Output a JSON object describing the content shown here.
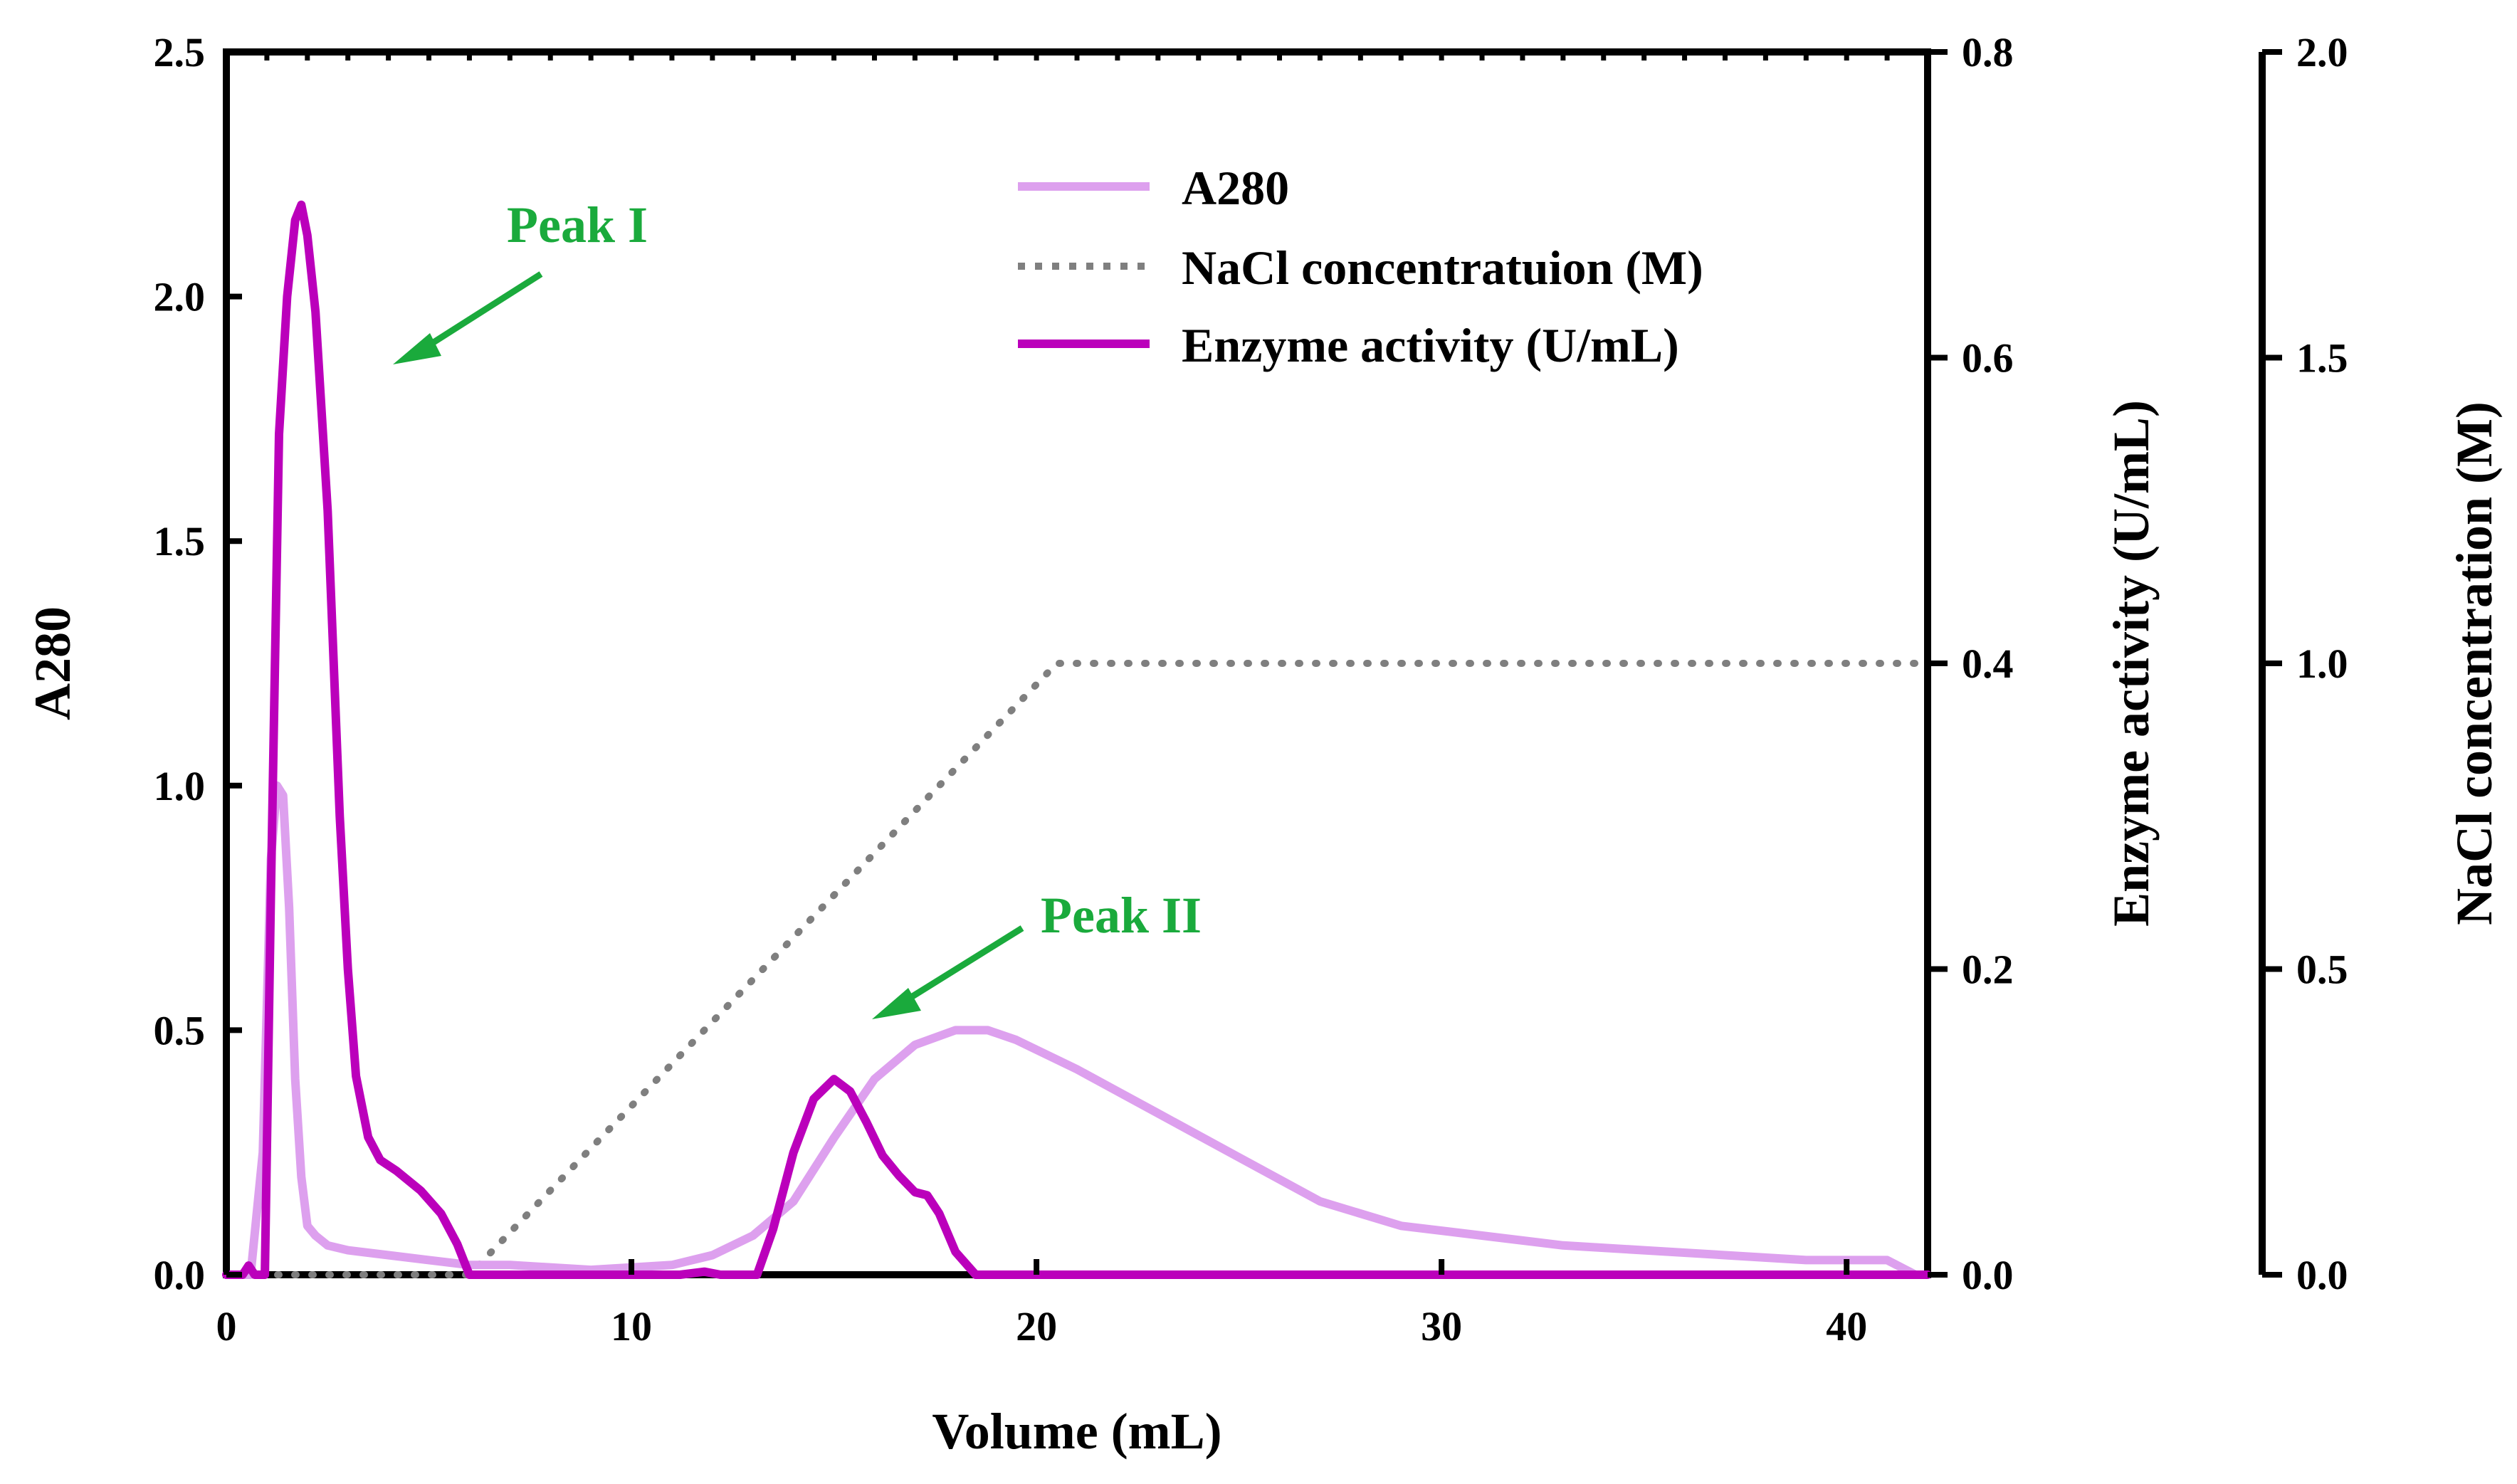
{
  "chart_data": {
    "type": "line",
    "title": "",
    "xlabel": "Volume (mL)",
    "ylabel": "A280",
    "y2label": "Enzyme activity (U/mL)",
    "y3label": "NaCl concentration (M)",
    "xlim": [
      0,
      42
    ],
    "ylim": [
      0,
      2.5
    ],
    "y2lim": [
      0,
      0.8
    ],
    "y3lim": [
      0,
      2.0
    ],
    "x_ticks": [
      "0",
      "10",
      "20",
      "30",
      "40"
    ],
    "y_ticks": [
      "0.0",
      "0.5",
      "1.0",
      "1.5",
      "2.0",
      "2.5"
    ],
    "y2_ticks": [
      "0.0",
      "0.2",
      "0.4",
      "0.6",
      "0.8"
    ],
    "y3_ticks": [
      "0.0",
      "0.5",
      "1.0",
      "1.5",
      "2.0"
    ],
    "legend_position": "top-center",
    "series": [
      {
        "name": "A280",
        "axis": "left",
        "style": "solid",
        "color": "#dda0ee",
        "x": [
          0,
          0.6,
          0.9,
          1.1,
          1.25,
          1.4,
          1.55,
          1.7,
          1.85,
          2.0,
          2.2,
          2.5,
          3.0,
          4.0,
          5.0,
          6.0,
          7.0,
          9.0,
          11.0,
          12.0,
          13.0,
          14.0,
          15.0,
          16.0,
          17.0,
          18.0,
          18.8,
          19.5,
          21.0,
          23.0,
          25.0,
          27.0,
          29.0,
          31.0,
          33.0,
          35.0,
          37.0,
          39.0,
          41.0,
          41.7
        ],
        "values": [
          0.0,
          0.0,
          0.25,
          0.85,
          1.0,
          0.98,
          0.75,
          0.4,
          0.2,
          0.1,
          0.08,
          0.06,
          0.05,
          0.04,
          0.03,
          0.02,
          0.02,
          0.01,
          0.02,
          0.04,
          0.08,
          0.15,
          0.28,
          0.4,
          0.47,
          0.5,
          0.5,
          0.48,
          0.42,
          0.33,
          0.24,
          0.15,
          0.1,
          0.08,
          0.06,
          0.05,
          0.04,
          0.03,
          0.03,
          0.0
        ]
      },
      {
        "name": "NaCl concentratuion (M)",
        "axis": "right-outer",
        "style": "dotted",
        "color": "#7f7f7f",
        "x": [
          0,
          6.0,
          20.5,
          42
        ],
        "values": [
          0.0,
          0.0,
          1.0,
          1.0
        ]
      },
      {
        "name": "Enzyme activity (U/mL)",
        "axis": "right",
        "style": "solid",
        "color": "#bb00bb",
        "x": [
          0,
          0.4,
          0.55,
          0.7,
          0.8,
          0.95,
          1.1,
          1.3,
          1.5,
          1.7,
          1.85,
          2.0,
          2.2,
          2.5,
          2.8,
          3.0,
          3.2,
          3.5,
          3.8,
          4.2,
          4.8,
          5.3,
          5.7,
          6.0,
          6.5,
          8.0,
          10.0,
          11.2,
          11.8,
          12.2,
          12.8,
          13.1,
          13.5,
          14.0,
          14.5,
          15.0,
          15.4,
          15.8,
          16.2,
          16.6,
          17.0,
          17.3,
          17.6,
          18.0,
          18.5,
          20.0,
          30.0,
          42.0
        ],
        "values": [
          0.0,
          0.0,
          0.006,
          0.0,
          0.0,
          0.0,
          0.25,
          0.55,
          0.64,
          0.69,
          0.7,
          0.68,
          0.63,
          0.5,
          0.3,
          0.2,
          0.13,
          0.09,
          0.075,
          0.068,
          0.055,
          0.04,
          0.02,
          0.0,
          0.0,
          0.0,
          0.0,
          0.0,
          0.002,
          0.0,
          0.0,
          0.0,
          0.03,
          0.08,
          0.115,
          0.128,
          0.12,
          0.1,
          0.078,
          0.065,
          0.054,
          0.052,
          0.04,
          0.015,
          0.0,
          0.0,
          0.0,
          0.0
        ]
      }
    ],
    "annotations": [
      {
        "text": "Peak I",
        "color": "#1aaa3c"
      },
      {
        "text": "Peak II",
        "color": "#1aaa3c"
      }
    ]
  }
}
